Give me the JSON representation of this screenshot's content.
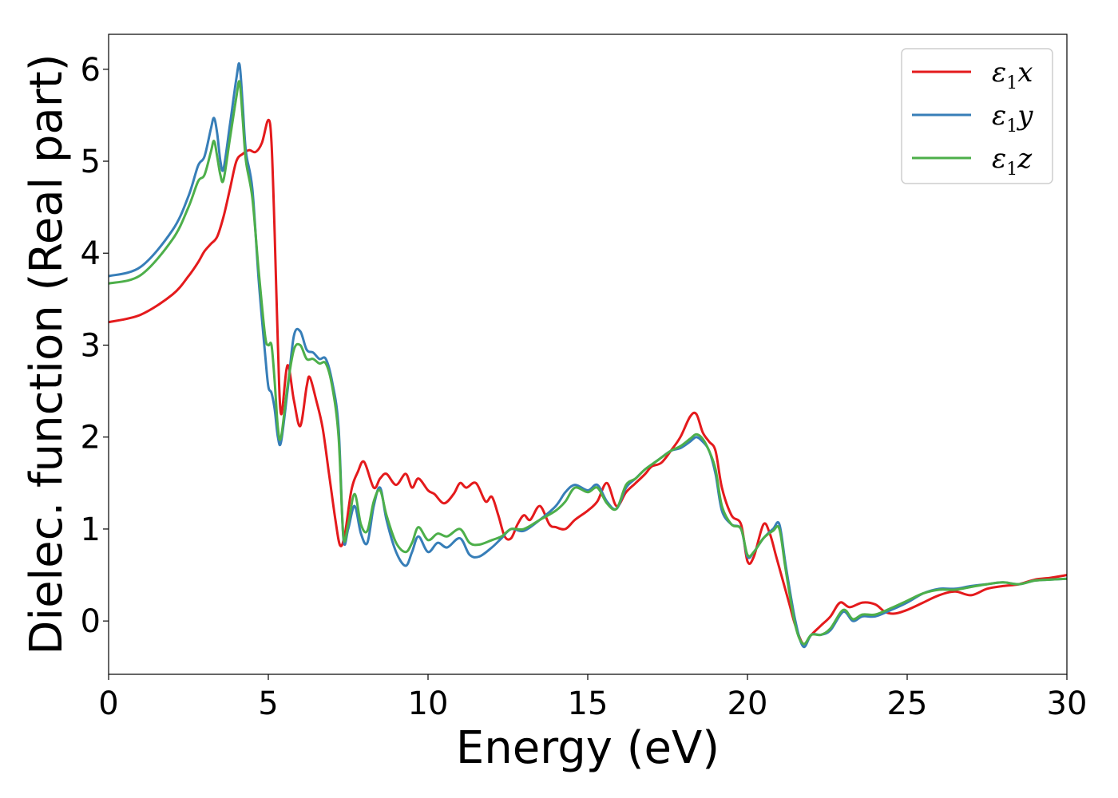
{
  "chart_data": {
    "type": "line",
    "xlabel": "Energy (eV)",
    "ylabel": "Dielec. function (Real part)",
    "xlim": [
      0,
      30
    ],
    "ylim": [
      -0.58,
      6.38
    ],
    "xticks": [
      "0",
      "5",
      "10",
      "15",
      "20",
      "25",
      "30"
    ],
    "yticks": [
      "0",
      "1",
      "2",
      "3",
      "4",
      "5",
      "6"
    ],
    "grid": false,
    "legend_position": "top-right",
    "series": [
      {
        "name": "ε1x",
        "legend_base": "ε",
        "legend_sub": "1",
        "legend_var": "x",
        "color": "#e41a1c",
        "x": [
          0,
          1,
          2,
          2.5,
          2.8,
          3.0,
          3.2,
          3.4,
          3.6,
          3.8,
          4.0,
          4.2,
          4.4,
          4.6,
          4.8,
          5.0,
          5.1,
          5.2,
          5.3,
          5.4,
          5.6,
          5.8,
          6.0,
          6.2,
          6.3,
          6.5,
          6.7,
          6.9,
          7.1,
          7.25,
          7.4,
          7.6,
          7.8,
          8.0,
          8.3,
          8.5,
          8.7,
          9.0,
          9.3,
          9.5,
          9.7,
          10.0,
          10.2,
          10.5,
          10.8,
          11.0,
          11.2,
          11.5,
          11.8,
          12.0,
          12.2,
          12.4,
          12.6,
          12.8,
          13.0,
          13.2,
          13.5,
          13.8,
          14.0,
          14.3,
          14.6,
          15.0,
          15.3,
          15.6,
          15.9,
          16.2,
          16.5,
          16.8,
          17.0,
          17.3,
          17.6,
          17.9,
          18.2,
          18.4,
          18.6,
          18.8,
          19.0,
          19.2,
          19.5,
          19.8,
          20.0,
          20.2,
          20.5,
          20.7,
          20.9,
          21.1,
          21.3,
          21.5,
          21.75,
          22.0,
          22.3,
          22.6,
          22.9,
          23.2,
          23.6,
          24.0,
          24.3,
          24.6,
          25.0,
          25.5,
          26.0,
          26.5,
          27.0,
          27.5,
          28.0,
          28.5,
          29.0,
          29.5,
          30
        ],
        "y": [
          3.25,
          3.33,
          3.55,
          3.75,
          3.9,
          4.02,
          4.1,
          4.18,
          4.4,
          4.7,
          5.0,
          5.08,
          5.12,
          5.1,
          5.2,
          5.45,
          5.2,
          4.2,
          3.0,
          2.25,
          2.78,
          2.4,
          2.12,
          2.55,
          2.65,
          2.4,
          2.1,
          1.6,
          1.1,
          0.82,
          0.95,
          1.42,
          1.62,
          1.73,
          1.45,
          1.55,
          1.6,
          1.48,
          1.6,
          1.45,
          1.55,
          1.42,
          1.38,
          1.28,
          1.38,
          1.5,
          1.45,
          1.5,
          1.3,
          1.35,
          1.15,
          0.92,
          0.9,
          1.05,
          1.15,
          1.1,
          1.25,
          1.05,
          1.02,
          1.0,
          1.1,
          1.2,
          1.3,
          1.5,
          1.25,
          1.4,
          1.5,
          1.6,
          1.68,
          1.72,
          1.85,
          2.0,
          2.22,
          2.25,
          2.05,
          1.95,
          1.85,
          1.45,
          1.15,
          1.05,
          0.65,
          0.7,
          1.05,
          0.95,
          0.7,
          0.45,
          0.2,
          -0.05,
          -0.25,
          -0.15,
          -0.05,
          0.05,
          0.2,
          0.15,
          0.2,
          0.18,
          0.1,
          0.08,
          0.12,
          0.2,
          0.28,
          0.32,
          0.28,
          0.35,
          0.38,
          0.4,
          0.45,
          0.47,
          0.5
        ]
      },
      {
        "name": "ε1y",
        "legend_base": "ε",
        "legend_sub": "1",
        "legend_var": "y",
        "color": "#377eb8",
        "x": [
          0,
          1,
          2,
          2.5,
          2.8,
          3.0,
          3.2,
          3.3,
          3.4,
          3.5,
          3.6,
          3.8,
          4.0,
          4.1,
          4.2,
          4.3,
          4.5,
          4.7,
          4.9,
          5.0,
          5.1,
          5.2,
          5.3,
          5.4,
          5.6,
          5.8,
          6.0,
          6.2,
          6.4,
          6.6,
          6.8,
          7.0,
          7.2,
          7.35,
          7.5,
          7.7,
          7.9,
          8.1,
          8.3,
          8.5,
          8.7,
          9.0,
          9.3,
          9.5,
          9.7,
          10.0,
          10.3,
          10.6,
          11.0,
          11.3,
          11.6,
          12.0,
          12.3,
          12.6,
          13.0,
          13.5,
          14.0,
          14.3,
          14.6,
          15.0,
          15.3,
          15.6,
          15.9,
          16.2,
          16.5,
          16.8,
          17.2,
          17.6,
          17.9,
          18.2,
          18.4,
          18.6,
          18.8,
          19.0,
          19.2,
          19.5,
          19.8,
          20.0,
          20.2,
          20.5,
          20.8,
          21.0,
          21.2,
          21.5,
          21.75,
          22.0,
          22.3,
          22.6,
          23.0,
          23.3,
          23.6,
          24.0,
          24.5,
          25.0,
          25.5,
          26.0,
          26.5,
          27.0,
          27.5,
          28.0,
          28.5,
          29.0,
          29.5,
          30
        ],
        "y": [
          3.75,
          3.85,
          4.25,
          4.62,
          4.95,
          5.05,
          5.35,
          5.47,
          5.3,
          5.0,
          4.92,
          5.4,
          5.9,
          6.05,
          5.6,
          5.1,
          4.7,
          3.7,
          2.9,
          2.55,
          2.48,
          2.3,
          2.0,
          1.95,
          2.5,
          3.1,
          3.15,
          2.95,
          2.92,
          2.85,
          2.85,
          2.6,
          2.1,
          0.9,
          1.0,
          1.25,
          0.95,
          0.85,
          1.25,
          1.45,
          1.1,
          0.75,
          0.6,
          0.75,
          0.92,
          0.75,
          0.85,
          0.8,
          0.9,
          0.72,
          0.7,
          0.8,
          0.9,
          1.0,
          0.98,
          1.1,
          1.25,
          1.4,
          1.48,
          1.42,
          1.48,
          1.3,
          1.22,
          1.45,
          1.55,
          1.65,
          1.75,
          1.85,
          1.88,
          1.95,
          2.0,
          1.95,
          1.85,
          1.6,
          1.2,
          1.05,
          1.0,
          0.7,
          0.75,
          0.9,
          1.0,
          1.05,
          0.6,
          0.0,
          -0.28,
          -0.15,
          -0.15,
          -0.1,
          0.1,
          0.0,
          0.05,
          0.05,
          0.12,
          0.2,
          0.3,
          0.35,
          0.35,
          0.38,
          0.4,
          0.42,
          0.4,
          0.44,
          0.45,
          0.46
        ]
      },
      {
        "name": "ε1z",
        "legend_base": "ε",
        "legend_sub": "1",
        "legend_var": "z",
        "color": "#4daf4a",
        "x": [
          0,
          1,
          2,
          2.5,
          2.8,
          3.0,
          3.2,
          3.3,
          3.4,
          3.5,
          3.6,
          3.8,
          4.0,
          4.1,
          4.2,
          4.3,
          4.5,
          4.7,
          4.9,
          5.0,
          5.1,
          5.2,
          5.3,
          5.4,
          5.6,
          5.8,
          6.0,
          6.2,
          6.4,
          6.6,
          6.8,
          7.0,
          7.2,
          7.35,
          7.5,
          7.7,
          7.9,
          8.1,
          8.3,
          8.5,
          8.7,
          9.0,
          9.3,
          9.5,
          9.7,
          10.0,
          10.3,
          10.6,
          11.0,
          11.3,
          11.6,
          12.0,
          12.3,
          12.6,
          13.0,
          13.5,
          14.0,
          14.3,
          14.6,
          15.0,
          15.3,
          15.6,
          15.9,
          16.2,
          16.5,
          16.8,
          17.2,
          17.6,
          17.9,
          18.2,
          18.4,
          18.6,
          18.8,
          19.0,
          19.2,
          19.5,
          19.8,
          20.0,
          20.2,
          20.5,
          20.8,
          21.0,
          21.2,
          21.5,
          21.75,
          22.0,
          22.3,
          22.6,
          23.0,
          23.3,
          23.6,
          24.0,
          24.5,
          25.0,
          25.5,
          26.0,
          26.5,
          27.0,
          27.5,
          28.0,
          28.5,
          29.0,
          29.5,
          30
        ],
        "y": [
          3.67,
          3.76,
          4.15,
          4.5,
          4.78,
          4.85,
          5.1,
          5.22,
          5.05,
          4.85,
          4.8,
          5.25,
          5.7,
          5.86,
          5.45,
          5.0,
          4.6,
          3.8,
          3.1,
          3.0,
          3.0,
          2.6,
          2.1,
          2.0,
          2.55,
          2.95,
          3.0,
          2.85,
          2.85,
          2.8,
          2.8,
          2.55,
          2.0,
          0.92,
          1.05,
          1.38,
          1.05,
          0.98,
          1.3,
          1.42,
          1.15,
          0.85,
          0.75,
          0.85,
          1.02,
          0.88,
          0.95,
          0.92,
          1.0,
          0.85,
          0.83,
          0.88,
          0.92,
          1.0,
          1.0,
          1.1,
          1.2,
          1.3,
          1.45,
          1.4,
          1.45,
          1.28,
          1.22,
          1.48,
          1.55,
          1.65,
          1.75,
          1.85,
          1.9,
          1.98,
          2.03,
          1.98,
          1.85,
          1.65,
          1.25,
          1.05,
          1.0,
          0.72,
          0.75,
          0.9,
          0.98,
          1.0,
          0.55,
          -0.05,
          -0.25,
          -0.15,
          -0.15,
          -0.08,
          0.12,
          0.02,
          0.07,
          0.07,
          0.14,
          0.22,
          0.3,
          0.34,
          0.34,
          0.37,
          0.4,
          0.42,
          0.4,
          0.44,
          0.45,
          0.46
        ]
      }
    ]
  }
}
